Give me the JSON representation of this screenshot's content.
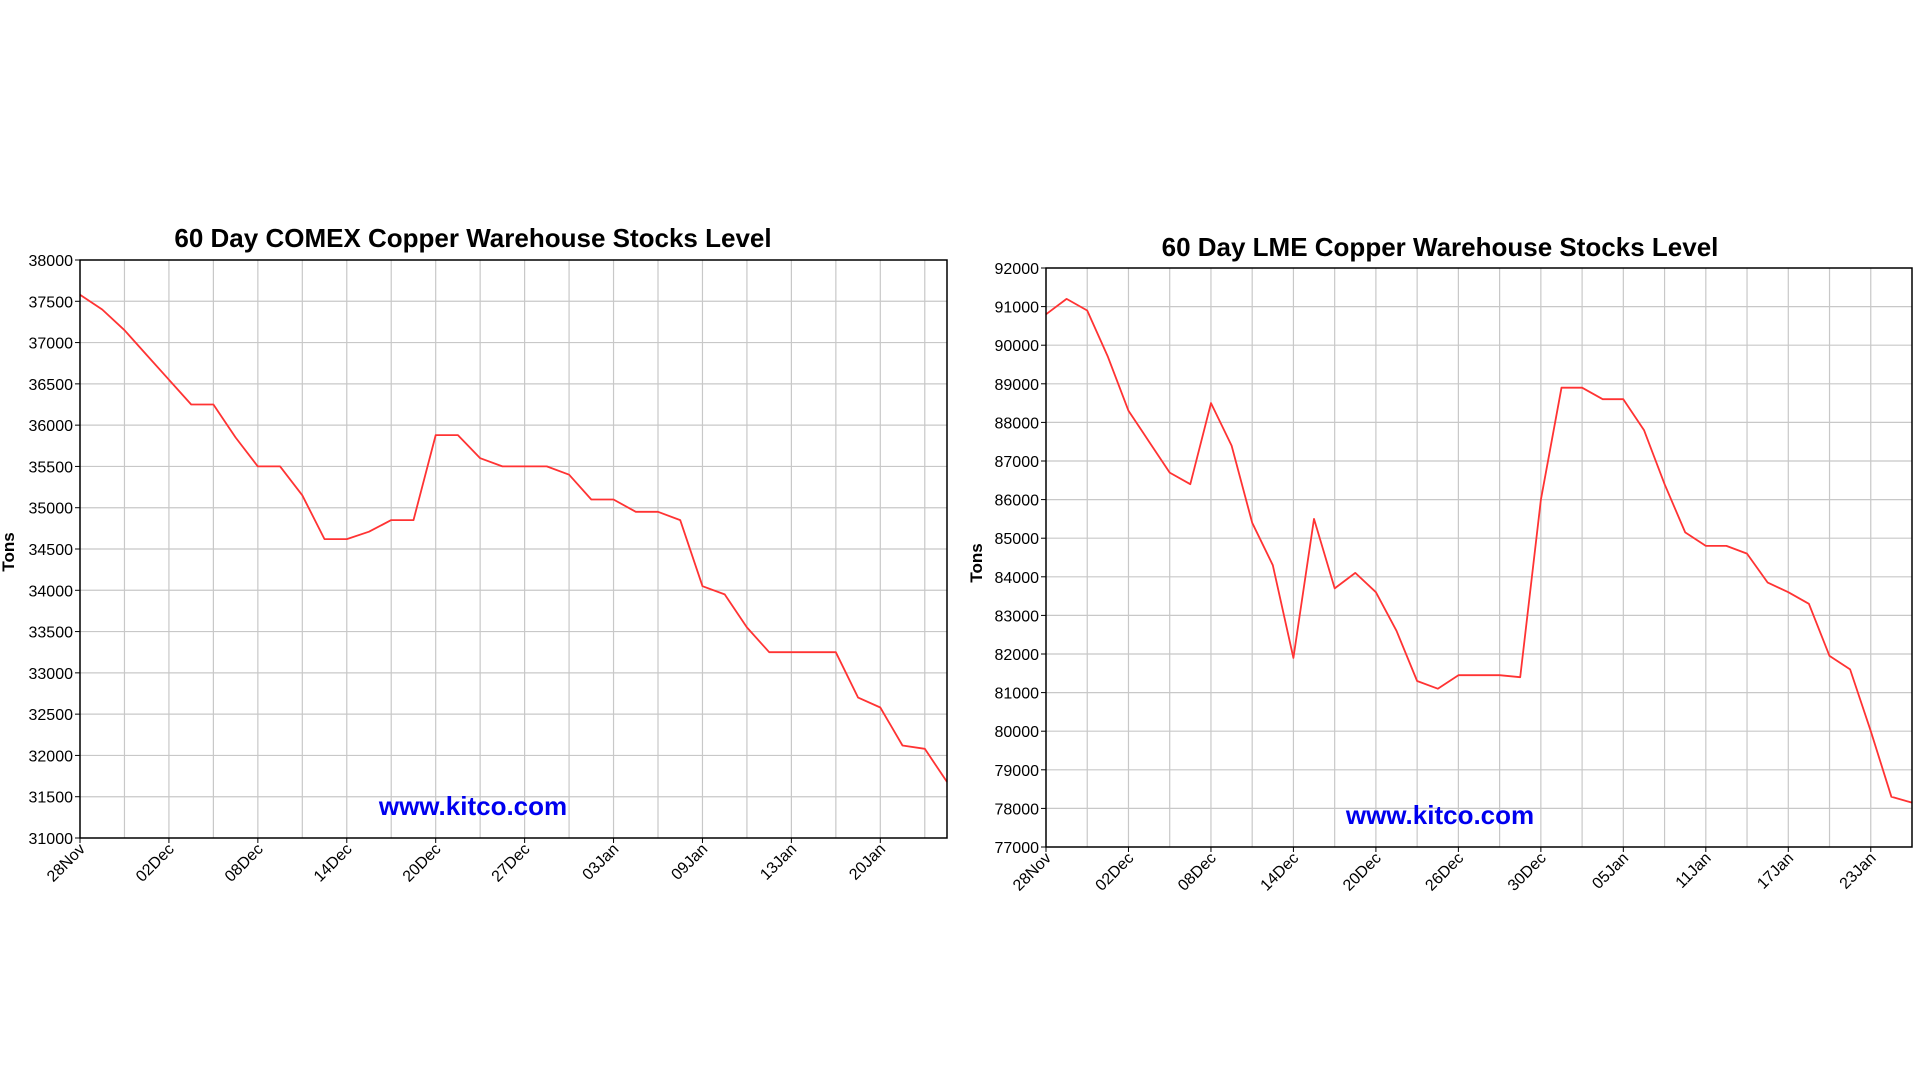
{
  "colors": {
    "line": "#ff3333",
    "grid": "#c8c8c8",
    "frame": "#000000",
    "watermark": "#0000ee"
  },
  "watermark": "www.kitco.com",
  "chart_data": [
    {
      "type": "line",
      "title": "60 Day COMEX Copper Warehouse Stocks Level",
      "xlabel": "",
      "ylabel": "Tons",
      "ylim": [
        31000,
        38000
      ],
      "yticks": [
        31000,
        31500,
        32000,
        32500,
        33000,
        33500,
        34000,
        34500,
        35000,
        35500,
        36000,
        36500,
        37000,
        37500,
        38000
      ],
      "xtick_labels": [
        "28Nov",
        "02Dec",
        "08Dec",
        "14Dec",
        "20Dec",
        "27Dec",
        "03Jan",
        "09Jan",
        "13Jan",
        "20Jan"
      ],
      "xtick_positions": [
        0,
        4,
        8,
        12,
        16,
        20,
        24,
        28,
        32,
        36
      ],
      "x_count": 40,
      "grid": true,
      "series": [
        {
          "values": [
            37580,
            37400,
            37150,
            36850,
            36550,
            36250,
            36250,
            35850,
            35500,
            35500,
            35150,
            34620,
            34620,
            34710,
            34850,
            34850,
            35880,
            35880,
            35600,
            35500,
            35500,
            35500,
            35400,
            35100,
            35100,
            34950,
            34950,
            34850,
            34050,
            33950,
            33550,
            33250,
            33250,
            33250,
            33250,
            32700,
            32580,
            32120,
            32080,
            31680
          ]
        }
      ]
    },
    {
      "type": "line",
      "title": "60 Day LME Copper Warehouse Stocks Level",
      "xlabel": "",
      "ylabel": "Tons",
      "ylim": [
        77000,
        92000
      ],
      "yticks": [
        77000,
        78000,
        79000,
        80000,
        81000,
        82000,
        83000,
        84000,
        85000,
        86000,
        87000,
        88000,
        89000,
        90000,
        91000,
        92000
      ],
      "xtick_labels": [
        "28Nov",
        "02Dec",
        "08Dec",
        "14Dec",
        "20Dec",
        "26Dec",
        "30Dec",
        "05Jan",
        "11Jan",
        "17Jan",
        "23Jan"
      ],
      "xtick_positions": [
        0,
        4,
        8,
        12,
        16,
        20,
        24,
        28,
        32,
        36,
        40
      ],
      "x_count": 43,
      "grid": true,
      "series": [
        {
          "values": [
            90800,
            91200,
            90900,
            89700,
            88300,
            87500,
            86700,
            86400,
            88500,
            87400,
            85400,
            84300,
            81900,
            85500,
            83700,
            84100,
            83600,
            82600,
            81300,
            81100,
            81450,
            81450,
            81450,
            81400,
            86000,
            88900,
            88900,
            88600,
            88600,
            87800,
            86400,
            85150,
            84800,
            84800,
            84600,
            83850,
            83600,
            83300,
            81950,
            81600,
            80000,
            78300,
            78150
          ]
        }
      ]
    }
  ]
}
